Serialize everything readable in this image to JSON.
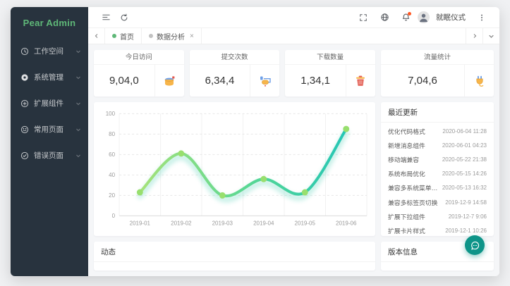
{
  "colors": {
    "accent_green": "#5fb878",
    "sidebar_bg": "#28333e",
    "fab_teal": "#0d9488",
    "content_bg": "#f5f6f8",
    "notification_dot": "#ff5722"
  },
  "sidebar": {
    "logo": "Pear Admin",
    "items": [
      {
        "label": "工作空间",
        "icon": "clock-icon"
      },
      {
        "label": "系统管理",
        "icon": "gear-icon"
      },
      {
        "label": "扩展组件",
        "icon": "components-icon"
      },
      {
        "label": "常用页面",
        "icon": "smiley-icon"
      },
      {
        "label": "错误页面",
        "icon": "error-check-icon"
      }
    ]
  },
  "header": {
    "user_name": "就眠仪式"
  },
  "tabs": {
    "items": [
      {
        "label": "首页",
        "dot_color": "#5fb878",
        "closable": false
      },
      {
        "label": "数据分析",
        "dot_color": "#c2c2c2",
        "closable": true
      }
    ]
  },
  "stats": [
    {
      "title": "今日访问",
      "value": "9,04,0",
      "icon": "paint-bucket-icon"
    },
    {
      "title": "提交次数",
      "value": "6,34,4",
      "icon": "paint-roller-icon"
    },
    {
      "title": "下载数量",
      "value": "1,34,1",
      "icon": "trash-icon"
    },
    {
      "title": "流量统计",
      "value": "7,04,6",
      "icon": "plug-icon"
    }
  ],
  "chart_data": {
    "type": "line",
    "smooth": true,
    "x": [
      "2019-01",
      "2019-02",
      "2019-03",
      "2019-04",
      "2019-05",
      "2019-06"
    ],
    "values": [
      23,
      61,
      20,
      36,
      23,
      85
    ],
    "ylim": [
      0,
      100
    ],
    "yticks": [
      0,
      20,
      40,
      60,
      80,
      100
    ],
    "grid": "horizontal-dashed, vertical-solid",
    "legend": "none",
    "title": "",
    "xlabel": "",
    "ylabel": "",
    "line_gradient": [
      "#a6e27a",
      "#55d795",
      "#25c6b5"
    ],
    "marker_color": "#98df6e",
    "glow_color": "#3ecbad"
  },
  "updates": {
    "title": "最近更新",
    "items": [
      {
        "label": "优化代码格式",
        "time": "2020-06-04 11:28"
      },
      {
        "label": "新增消息组件",
        "time": "2020-06-01 04:23"
      },
      {
        "label": "移动端兼容",
        "time": "2020-05-22 21:38"
      },
      {
        "label": "系统布局优化",
        "time": "2020-05-15 14:26"
      },
      {
        "label": "兼容多系统菜单模式",
        "time": "2020-05-13 16:32"
      },
      {
        "label": "兼容多标签页切换",
        "time": "2019-12-9 14:58"
      },
      {
        "label": "扩展下拉组件",
        "time": "2019-12-7 9:06"
      },
      {
        "label": "扩展卡片样式",
        "time": "2019-12-1 10:26"
      }
    ]
  },
  "panels": {
    "activity_title": "动态",
    "version_title": "版本信息"
  }
}
